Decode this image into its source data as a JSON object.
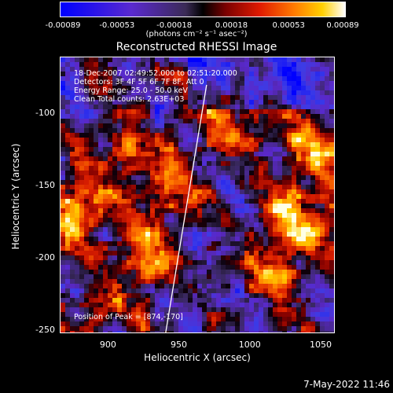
{
  "chart_data": {
    "type": "heatmap",
    "title": "Reconstructed RHESSI Image",
    "xlabel": "Heliocentric X (arcsec)",
    "ylabel": "Heliocentric Y (arcsec)",
    "xlim": [
      866,
      1060
    ],
    "ylim": [
      -252,
      -61
    ],
    "x_ticks": [
      900,
      950,
      1000,
      1050
    ],
    "y_ticks": [
      -100,
      -150,
      -200,
      -250
    ],
    "colorbar": {
      "ticks": [
        "-0.00089",
        "-0.00053",
        "-0.00018",
        "0.00018",
        "0.00053",
        "0.00089"
      ],
      "unit_label": "(photons cm⁻² s⁻¹ asec⁻²)",
      "range": [
        -0.00089,
        0.00089
      ]
    },
    "annotations": [
      "18-Dec-2007 02:49:52.000 to 02:51:20.000",
      "Detectors: 3F 4F 5F 6F 7F 8F, Att 0",
      "Energy Range: 25.0 - 50.0 keV",
      "Clean     Total counts: 2.63E+03"
    ],
    "peak_label": "Position of Peak = [874,-170]",
    "limb_line": [
      [
        940,
        -252
      ],
      [
        969,
        -80
      ]
    ]
  },
  "timestamp": "7-May-2022 11:46"
}
